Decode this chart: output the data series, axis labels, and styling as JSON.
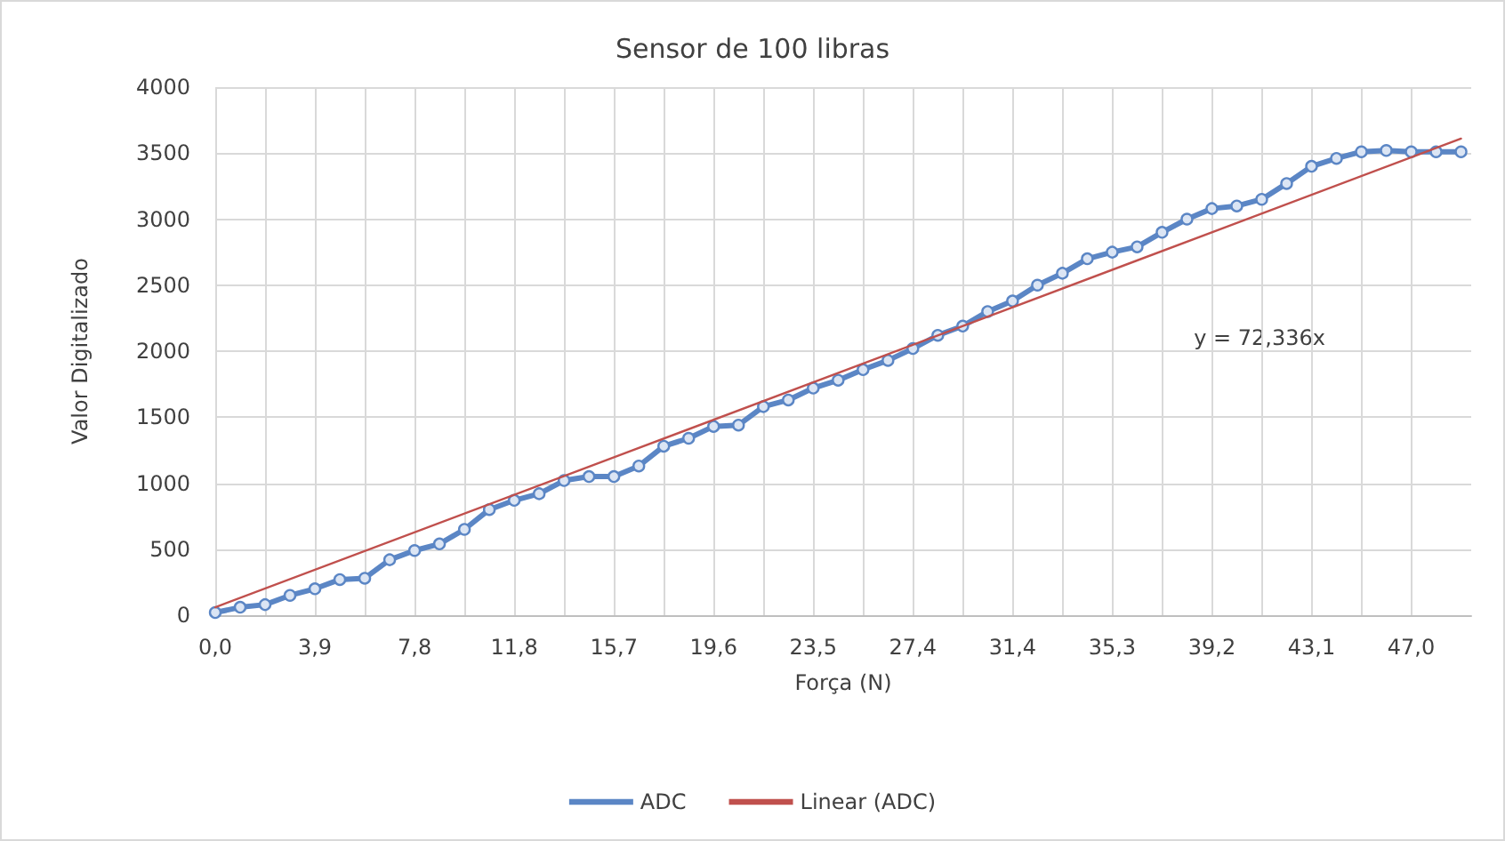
{
  "chart_data": {
    "type": "line",
    "title": "Sensor de 100 libras",
    "xlabel": "Força (N)",
    "ylabel": "Valor Digitalizado",
    "x": [
      0,
      0.98,
      1.96,
      2.94,
      3.92,
      4.9,
      5.88,
      6.86,
      7.84,
      8.82,
      9.8,
      10.78,
      11.76,
      12.74,
      13.72,
      14.7,
      15.68,
      16.66,
      17.64,
      18.62,
      19.6,
      20.58,
      21.56,
      22.54,
      23.52,
      24.5,
      25.48,
      26.46,
      27.44,
      28.42,
      29.4,
      30.38,
      31.36,
      32.34,
      33.32,
      34.3,
      35.28,
      36.26,
      37.24,
      38.22,
      39.2,
      40.18,
      41.16,
      42.14,
      43.12,
      44.1,
      45.08,
      46.06,
      47.04,
      48.02,
      49
    ],
    "series": [
      {
        "name": "ADC",
        "color": "#5b86c5",
        "marker": "circle",
        "values": [
          20,
          60,
          80,
          150,
          200,
          270,
          280,
          420,
          490,
          540,
          650,
          800,
          870,
          920,
          1020,
          1050,
          1050,
          1130,
          1280,
          1340,
          1430,
          1440,
          1580,
          1630,
          1720,
          1780,
          1860,
          1930,
          2020,
          2120,
          2190,
          2300,
          2380,
          2500,
          2590,
          2700,
          2750,
          2790,
          2900,
          3000,
          3080,
          3100,
          3150,
          3270,
          3400,
          3460,
          3510,
          3520,
          3510,
          3510,
          3510
        ]
      },
      {
        "name": "Linear (ADC)",
        "type": "line",
        "color": "#c0504d",
        "marker": "none",
        "x": [
          0,
          49
        ],
        "values": [
          60,
          3610
        ]
      }
    ],
    "xlim": [
      0,
      49.4
    ],
    "xticks": [
      {
        "value": 0,
        "label": "0,0"
      },
      {
        "value": 1.96,
        "label": null
      },
      {
        "value": 3.92,
        "label": "3,9"
      },
      {
        "value": 5.88,
        "label": null
      },
      {
        "value": 7.84,
        "label": "7,8"
      },
      {
        "value": 9.8,
        "label": null
      },
      {
        "value": 11.76,
        "label": "11,8"
      },
      {
        "value": 13.72,
        "label": null
      },
      {
        "value": 15.68,
        "label": "15,7"
      },
      {
        "value": 17.64,
        "label": null
      },
      {
        "value": 19.6,
        "label": "19,6"
      },
      {
        "value": 21.56,
        "label": null
      },
      {
        "value": 23.52,
        "label": "23,5"
      },
      {
        "value": 25.48,
        "label": null
      },
      {
        "value": 27.44,
        "label": "27,4"
      },
      {
        "value": 29.4,
        "label": null
      },
      {
        "value": 31.36,
        "label": "31,4"
      },
      {
        "value": 33.32,
        "label": null
      },
      {
        "value": 35.28,
        "label": "35,3"
      },
      {
        "value": 37.24,
        "label": null
      },
      {
        "value": 39.2,
        "label": "39,2"
      },
      {
        "value": 41.16,
        "label": null
      },
      {
        "value": 43.12,
        "label": "43,1"
      },
      {
        "value": 45.08,
        "label": null
      },
      {
        "value": 47.04,
        "label": "47,0"
      }
    ],
    "ylim": [
      0,
      4000
    ],
    "yticks": [
      0,
      500,
      1000,
      1500,
      2000,
      2500,
      3000,
      3500,
      4000
    ],
    "annotations": [
      "y = 72,336x"
    ],
    "grid": true,
    "legend": "bottom"
  }
}
